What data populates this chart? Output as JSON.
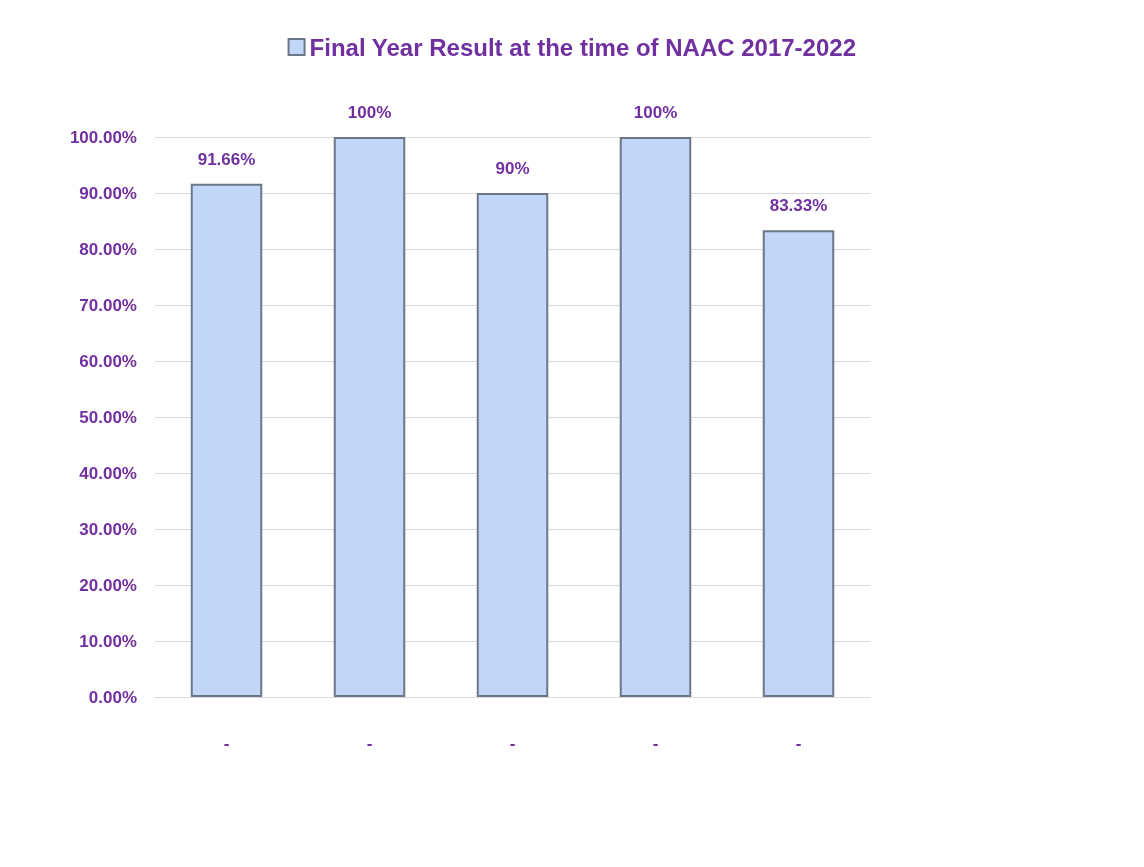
{
  "chart_data": {
    "type": "bar",
    "categories": [
      "-",
      "-",
      "-",
      "-",
      "-"
    ],
    "series": [
      {
        "name": "Final Year Result at the time of NAAC 2017-2022",
        "color": "#c2d6f8",
        "values": [
          91.66,
          100,
          90,
          100,
          83.33
        ],
        "value_labels": [
          "91.66%",
          "100%",
          "90%",
          "100%",
          "83.33%"
        ]
      }
    ],
    "ylim": [
      0,
      100
    ],
    "yticks": [
      {
        "value": 0,
        "label": "0.00%"
      },
      {
        "value": 10,
        "label": "10.00%"
      },
      {
        "value": 20,
        "label": "20.00%"
      },
      {
        "value": 30,
        "label": "30.00%"
      },
      {
        "value": 40,
        "label": "40.00%"
      },
      {
        "value": 50,
        "label": "50.00%"
      },
      {
        "value": 60,
        "label": "60.00%"
      },
      {
        "value": 70,
        "label": "70.00%"
      },
      {
        "value": 80,
        "label": "80.00%"
      },
      {
        "value": 90,
        "label": "90.00%"
      },
      {
        "value": 100,
        "label": "100.00%"
      }
    ],
    "grid": "y",
    "legend": "top"
  }
}
